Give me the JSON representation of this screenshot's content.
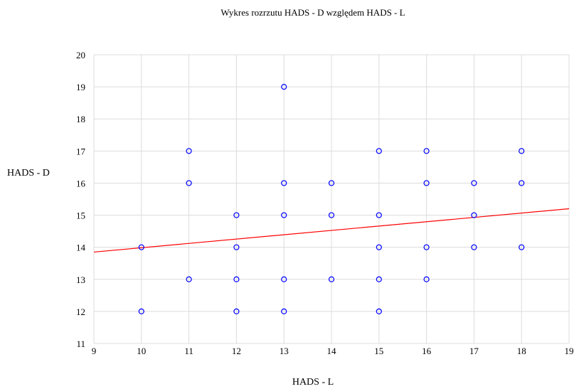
{
  "chart_data": {
    "type": "scatter",
    "title": "Wykres rozrzutu HADS - D względem HADS - L",
    "xlabel": "HADS - L",
    "ylabel": "HADS - D",
    "xlim": [
      9,
      19
    ],
    "ylim": [
      11,
      20
    ],
    "xticks": [
      "9",
      "10",
      "11",
      "12",
      "13",
      "14",
      "15",
      "16",
      "17",
      "18",
      "19"
    ],
    "yticks": [
      "11",
      "12",
      "13",
      "14",
      "15",
      "16",
      "17",
      "18",
      "19",
      "20"
    ],
    "grid": true,
    "legend": "none",
    "point_color": "#0000ff",
    "trend_color": "#ff0000",
    "points": [
      {
        "x": 10,
        "y": 12
      },
      {
        "x": 10,
        "y": 14
      },
      {
        "x": 11,
        "y": 13
      },
      {
        "x": 11,
        "y": 16
      },
      {
        "x": 11,
        "y": 17
      },
      {
        "x": 12,
        "y": 12
      },
      {
        "x": 12,
        "y": 13
      },
      {
        "x": 12,
        "y": 14
      },
      {
        "x": 12,
        "y": 15
      },
      {
        "x": 13,
        "y": 12
      },
      {
        "x": 13,
        "y": 13
      },
      {
        "x": 13,
        "y": 15
      },
      {
        "x": 13,
        "y": 16
      },
      {
        "x": 13,
        "y": 19
      },
      {
        "x": 14,
        "y": 13
      },
      {
        "x": 14,
        "y": 15
      },
      {
        "x": 14,
        "y": 16
      },
      {
        "x": 15,
        "y": 12
      },
      {
        "x": 15,
        "y": 13
      },
      {
        "x": 15,
        "y": 14
      },
      {
        "x": 15,
        "y": 15
      },
      {
        "x": 15,
        "y": 17
      },
      {
        "x": 16,
        "y": 13
      },
      {
        "x": 16,
        "y": 14
      },
      {
        "x": 16,
        "y": 16
      },
      {
        "x": 16,
        "y": 17
      },
      {
        "x": 17,
        "y": 14
      },
      {
        "x": 17,
        "y": 15
      },
      {
        "x": 17,
        "y": 16
      },
      {
        "x": 18,
        "y": 14
      },
      {
        "x": 18,
        "y": 16
      },
      {
        "x": 18,
        "y": 17
      }
    ],
    "trendline": {
      "x": [
        9,
        19
      ],
      "y": [
        13.85,
        15.2
      ]
    }
  }
}
